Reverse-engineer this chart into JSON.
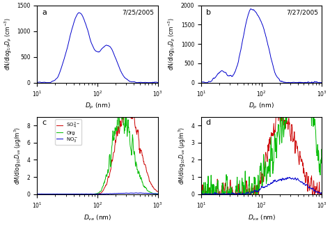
{
  "title_a": "7/25/2005",
  "title_b": "7/27/2005",
  "label_a": "a",
  "label_b": "b",
  "label_c": "c",
  "label_d": "d",
  "ylabel_top": "dN/dlog$_{10}$$D_p$ (cm$^{-3}$)",
  "ylabel_bot": "dM/dlog$_{10}$$D_{va}$ ($\\mu$g/m$^{3}$)",
  "xlabel_top": "$D_p$ (nm)",
  "xlabel_bot": "$D_{va}$ (nm)",
  "ylim_a": [
    0,
    1500
  ],
  "ylim_b": [
    0,
    2000
  ],
  "ylim_c": [
    0,
    9
  ],
  "ylim_d": [
    0,
    4.5
  ],
  "xlim": [
    10,
    1000
  ],
  "blue_color": "#0000CC",
  "red_color": "#CC0000",
  "green_color": "#00BB00",
  "legend_c": [
    "SO$_4^{2-}$",
    "Org",
    "NO$_3^-$"
  ]
}
